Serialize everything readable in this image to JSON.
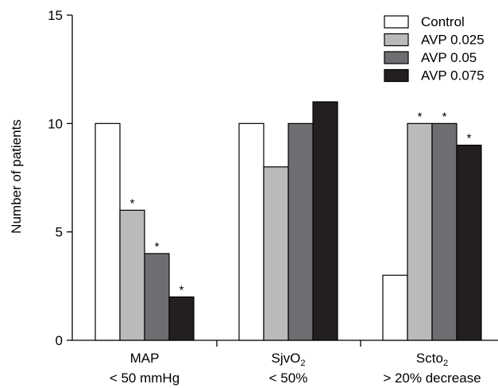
{
  "chart_data": {
    "type": "bar",
    "ylabel": "Number of patients",
    "ylim": [
      0,
      15
    ],
    "yticks": [
      0,
      5,
      10,
      15
    ],
    "grid": false,
    "legend_position": "top-right",
    "categories": [
      {
        "line1": "MAP",
        "sub": "",
        "line2": "< 50 mmHg"
      },
      {
        "line1": "SjvO",
        "sub": "2",
        "line2": "< 50%"
      },
      {
        "line1": "Scto",
        "sub": "2",
        "line2": "> 20% decrease"
      }
    ],
    "series": [
      {
        "name": "Control",
        "color": "#ffffff",
        "values": [
          10,
          10,
          3
        ],
        "significant": [
          false,
          false,
          false
        ]
      },
      {
        "name": "AVP 0.025",
        "color": "#b9babc",
        "values": [
          6,
          8,
          10
        ],
        "significant": [
          true,
          false,
          true
        ]
      },
      {
        "name": "AVP 0.05",
        "color": "#6d6e71",
        "values": [
          4,
          10,
          10
        ],
        "significant": [
          true,
          false,
          true
        ]
      },
      {
        "name": "AVP 0.075",
        "color": "#231f20",
        "values": [
          2,
          11,
          9
        ],
        "significant": [
          true,
          false,
          true
        ]
      }
    ],
    "significance_marker": "*"
  }
}
